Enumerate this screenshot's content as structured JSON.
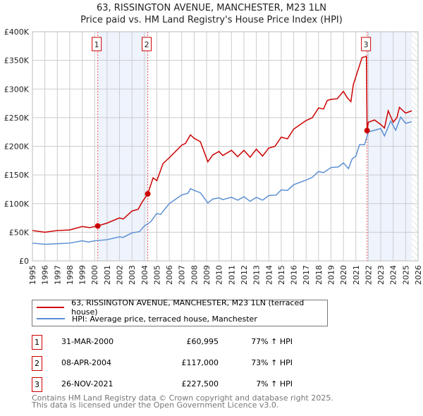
{
  "title": "63, RISSINGTON AVENUE, MANCHESTER, M23 1LN",
  "subtitle": "Price paid vs. HM Land Registry's House Price Index (HPI)",
  "chart_data": {
    "type": "line",
    "xlim": [
      1995,
      2026
    ],
    "ylim": [
      0,
      400000
    ],
    "y_ticks": [
      {
        "v": 0,
        "label": "£0"
      },
      {
        "v": 50000,
        "label": "£50K"
      },
      {
        "v": 100000,
        "label": "£100K"
      },
      {
        "v": 150000,
        "label": "£150K"
      },
      {
        "v": 200000,
        "label": "£200K"
      },
      {
        "v": 250000,
        "label": "£250K"
      },
      {
        "v": 300000,
        "label": "£300K"
      },
      {
        "v": 350000,
        "label": "£350K"
      },
      {
        "v": 400000,
        "label": "£400K"
      }
    ],
    "x_ticks": [
      "1995",
      "1996",
      "1997",
      "1998",
      "1999",
      "2000",
      "2001",
      "2002",
      "2003",
      "2004",
      "2005",
      "2006",
      "2007",
      "2008",
      "2009",
      "2010",
      "2011",
      "2012",
      "2013",
      "2014",
      "2015",
      "2016",
      "2017",
      "2018",
      "2019",
      "2020",
      "2021",
      "2022",
      "2023",
      "2024",
      "2025",
      "2026"
    ],
    "shaded": [
      [
        2000.25,
        2004.27
      ],
      [
        2021.9,
        2025.5
      ]
    ],
    "hatched_from": 2025.5,
    "series": [
      {
        "name": "63, RISSINGTON AVENUE, MANCHESTER, M23 1LN (terraced house)",
        "color": "#cc0000",
        "points": [
          [
            1995,
            53
          ],
          [
            1996,
            50
          ],
          [
            1997,
            53
          ],
          [
            1998,
            54
          ],
          [
            1999,
            60
          ],
          [
            1999.6,
            58
          ],
          [
            2000.25,
            61
          ],
          [
            2001,
            66
          ],
          [
            2002,
            75
          ],
          [
            2002.3,
            73
          ],
          [
            2003,
            87
          ],
          [
            2003.5,
            90
          ],
          [
            2003.8,
            102
          ],
          [
            2004.27,
            117
          ],
          [
            2004.7,
            145
          ],
          [
            2005,
            140
          ],
          [
            2005.5,
            170
          ],
          [
            2006,
            180
          ],
          [
            2007,
            202
          ],
          [
            2007.3,
            205
          ],
          [
            2007.7,
            220
          ],
          [
            2008,
            214
          ],
          [
            2008.5,
            208
          ],
          [
            2009.1,
            173
          ],
          [
            2009.5,
            185
          ],
          [
            2010,
            191
          ],
          [
            2010.3,
            184
          ],
          [
            2011,
            193
          ],
          [
            2011.5,
            182
          ],
          [
            2012,
            193
          ],
          [
            2012.5,
            181
          ],
          [
            2013,
            195
          ],
          [
            2013.5,
            183
          ],
          [
            2014,
            197
          ],
          [
            2014.5,
            200
          ],
          [
            2015,
            216
          ],
          [
            2015.5,
            213
          ],
          [
            2016,
            230
          ],
          [
            2017,
            245
          ],
          [
            2017.5,
            250
          ],
          [
            2018,
            267
          ],
          [
            2018.4,
            265
          ],
          [
            2018.7,
            280
          ],
          [
            2019,
            282
          ],
          [
            2019.5,
            283
          ],
          [
            2020,
            296
          ],
          [
            2020.3,
            285
          ],
          [
            2020.6,
            278
          ],
          [
            2020.8,
            308
          ],
          [
            2021.2,
            335
          ],
          [
            2021.5,
            355
          ],
          [
            2021.85,
            357
          ],
          [
            2021.9,
            227.5
          ],
          [
            2022,
            242
          ],
          [
            2022.5,
            246
          ],
          [
            2023,
            238
          ],
          [
            2023.3,
            232
          ],
          [
            2023.6,
            262
          ],
          [
            2024,
            242
          ],
          [
            2024.3,
            250
          ],
          [
            2024.5,
            268
          ],
          [
            2025,
            258
          ],
          [
            2025.5,
            262
          ]
        ]
      },
      {
        "name": "HPI: Average price, terraced house, Manchester",
        "color": "#5b8fd4",
        "points": [
          [
            1995,
            31
          ],
          [
            1996,
            29
          ],
          [
            1997,
            30
          ],
          [
            1998,
            31
          ],
          [
            1999,
            35
          ],
          [
            1999.5,
            33
          ],
          [
            2000,
            35
          ],
          [
            2001,
            37
          ],
          [
            2002,
            42
          ],
          [
            2002.3,
            41
          ],
          [
            2003,
            49
          ],
          [
            2003.6,
            51
          ],
          [
            2004,
            61
          ],
          [
            2004.5,
            68
          ],
          [
            2005,
            83
          ],
          [
            2005.3,
            81
          ],
          [
            2006,
            100
          ],
          [
            2007,
            115
          ],
          [
            2007.5,
            118
          ],
          [
            2007.7,
            126
          ],
          [
            2008,
            123
          ],
          [
            2008.5,
            119
          ],
          [
            2009.1,
            101
          ],
          [
            2009.5,
            108
          ],
          [
            2010,
            110
          ],
          [
            2010.3,
            107
          ],
          [
            2011,
            111
          ],
          [
            2011.5,
            106
          ],
          [
            2012,
            112
          ],
          [
            2012.5,
            104
          ],
          [
            2013,
            111
          ],
          [
            2013.5,
            106
          ],
          [
            2014,
            114
          ],
          [
            2014.6,
            115
          ],
          [
            2015,
            124
          ],
          [
            2015.5,
            123
          ],
          [
            2016,
            133
          ],
          [
            2017,
            141
          ],
          [
            2017.5,
            146
          ],
          [
            2018,
            156
          ],
          [
            2018.4,
            154
          ],
          [
            2019,
            163
          ],
          [
            2019.6,
            164
          ],
          [
            2020,
            171
          ],
          [
            2020.4,
            161
          ],
          [
            2020.7,
            178
          ],
          [
            2021,
            183
          ],
          [
            2021.3,
            203
          ],
          [
            2021.7,
            203
          ],
          [
            2022,
            225
          ],
          [
            2022.5,
            228
          ],
          [
            2023,
            231
          ],
          [
            2023.3,
            218
          ],
          [
            2023.8,
            244
          ],
          [
            2024.2,
            228
          ],
          [
            2024.6,
            251
          ],
          [
            2025,
            240
          ],
          [
            2025.5,
            243
          ]
        ]
      }
    ],
    "sales": [
      {
        "n": "1",
        "x": 2000.25,
        "y": 60995
      },
      {
        "n": "2",
        "x": 2004.27,
        "y": 117000
      },
      {
        "n": "3",
        "x": 2021.9,
        "y": 227500
      }
    ]
  },
  "legend": {
    "red": "63, RISSINGTON AVENUE, MANCHESTER, M23 1LN (terraced house)",
    "blue": "HPI: Average price, terraced house, Manchester"
  },
  "table": [
    {
      "n": "1",
      "date": "31-MAR-2000",
      "price": "£60,995",
      "hpi": "77% ↑ HPI"
    },
    {
      "n": "2",
      "date": "08-APR-2004",
      "price": "£117,000",
      "hpi": "73% ↑ HPI"
    },
    {
      "n": "3",
      "date": "26-NOV-2021",
      "price": "£227,500",
      "hpi": "7% ↑ HPI"
    }
  ],
  "footer": [
    "Contains HM Land Registry data © Crown copyright and database right 2025.",
    "This data is licensed under the Open Government Licence v3.0."
  ]
}
